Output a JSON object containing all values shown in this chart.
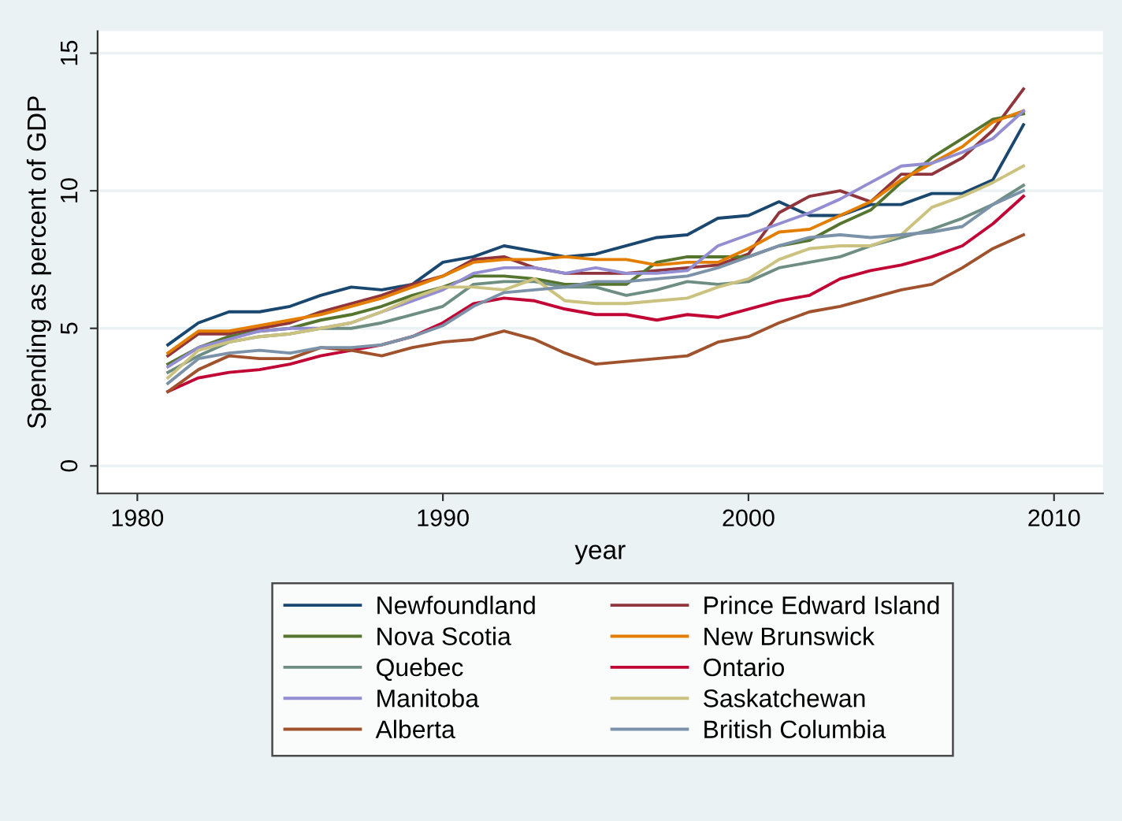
{
  "chart_data": {
    "type": "line",
    "xlabel": "year",
    "ylabel": "Spending as percent of GDP",
    "x": [
      1981,
      1982,
      1983,
      1984,
      1985,
      1986,
      1987,
      1988,
      1989,
      1990,
      1991,
      1992,
      1993,
      1994,
      1995,
      1996,
      1997,
      1998,
      1999,
      2000,
      2001,
      2002,
      2003,
      2004,
      2005,
      2006,
      2007,
      2008,
      2009
    ],
    "series": [
      {
        "name": "Newfoundland",
        "color": "#1a476f",
        "values": [
          4.4,
          5.2,
          5.6,
          5.6,
          5.8,
          6.2,
          6.5,
          6.4,
          6.6,
          7.4,
          7.6,
          8.0,
          7.8,
          7.6,
          7.7,
          8.0,
          8.3,
          8.4,
          9.0,
          9.1,
          9.6,
          9.1,
          9.1,
          9.5,
          9.5,
          9.9,
          9.9,
          10.4,
          12.4
        ]
      },
      {
        "name": "Prince Edward Island",
        "color": "#90353b",
        "values": [
          4.0,
          4.8,
          4.8,
          5.0,
          5.2,
          5.6,
          5.9,
          6.2,
          6.6,
          6.9,
          7.5,
          7.6,
          7.2,
          7.0,
          7.0,
          7.0,
          7.1,
          7.2,
          7.3,
          7.7,
          9.2,
          9.8,
          10.0,
          9.6,
          10.6,
          10.6,
          11.2,
          12.2,
          13.7
        ]
      },
      {
        "name": "Nova Scotia",
        "color": "#55752f",
        "values": [
          3.7,
          4.3,
          4.7,
          4.9,
          5.0,
          5.3,
          5.5,
          5.8,
          6.2,
          6.5,
          6.9,
          6.9,
          6.8,
          6.6,
          6.6,
          6.6,
          7.4,
          7.6,
          7.6,
          7.6,
          8.0,
          8.2,
          8.8,
          9.3,
          10.3,
          11.2,
          11.9,
          12.6,
          12.8
        ]
      },
      {
        "name": "New Brunswick",
        "color": "#e37e00",
        "values": [
          4.1,
          4.9,
          4.9,
          5.1,
          5.3,
          5.5,
          5.8,
          6.1,
          6.5,
          6.9,
          7.4,
          7.5,
          7.5,
          7.6,
          7.5,
          7.5,
          7.3,
          7.4,
          7.4,
          7.9,
          8.5,
          8.6,
          9.1,
          9.6,
          10.4,
          11.0,
          11.6,
          12.5,
          12.9
        ]
      },
      {
        "name": "Quebec",
        "color": "#6e8e84",
        "values": [
          3.4,
          4.0,
          4.5,
          4.7,
          4.8,
          5.0,
          5.0,
          5.2,
          5.5,
          5.8,
          6.6,
          6.7,
          6.7,
          6.5,
          6.5,
          6.2,
          6.4,
          6.7,
          6.6,
          6.7,
          7.2,
          7.4,
          7.6,
          8.0,
          8.3,
          8.6,
          9.0,
          9.5,
          10.2
        ]
      },
      {
        "name": "Ontario",
        "color": "#c10534",
        "values": [
          2.7,
          3.2,
          3.4,
          3.5,
          3.7,
          4.0,
          4.2,
          4.4,
          4.7,
          5.2,
          5.9,
          6.1,
          6.0,
          5.7,
          5.5,
          5.5,
          5.3,
          5.5,
          5.4,
          5.7,
          6.0,
          6.2,
          6.8,
          7.1,
          7.3,
          7.6,
          8.0,
          8.8,
          9.8
        ]
      },
      {
        "name": "Manitoba",
        "color": "#938dd2",
        "values": [
          3.6,
          4.3,
          4.6,
          4.9,
          5.0,
          5.0,
          5.2,
          5.6,
          6.0,
          6.4,
          7.0,
          7.2,
          7.2,
          7.0,
          7.2,
          7.0,
          7.0,
          7.1,
          8.0,
          8.4,
          8.8,
          9.2,
          9.7,
          10.3,
          10.9,
          11.0,
          11.4,
          11.9,
          12.9
        ]
      },
      {
        "name": "Saskatchewan",
        "color": "#cac27e",
        "values": [
          3.2,
          4.2,
          4.5,
          4.7,
          4.8,
          5.0,
          5.2,
          5.6,
          6.1,
          6.5,
          6.5,
          6.4,
          6.8,
          6.0,
          5.9,
          5.9,
          6.0,
          6.1,
          6.5,
          6.8,
          7.5,
          7.9,
          8.0,
          8.0,
          8.4,
          9.4,
          9.8,
          10.3,
          10.9
        ]
      },
      {
        "name": "Alberta",
        "color": "#a0522d",
        "values": [
          2.7,
          3.5,
          4.0,
          3.9,
          3.9,
          4.3,
          4.2,
          4.0,
          4.3,
          4.5,
          4.6,
          4.9,
          4.6,
          4.1,
          3.7,
          3.8,
          3.9,
          4.0,
          4.5,
          4.7,
          5.2,
          5.6,
          5.8,
          6.1,
          6.4,
          6.6,
          7.2,
          7.9,
          8.4
        ]
      },
      {
        "name": "British Columbia",
        "color": "#7b92a8",
        "values": [
          3.0,
          3.9,
          4.1,
          4.2,
          4.1,
          4.3,
          4.3,
          4.4,
          4.7,
          5.1,
          5.8,
          6.3,
          6.4,
          6.5,
          6.7,
          6.7,
          6.8,
          6.9,
          7.2,
          7.6,
          8.0,
          8.3,
          8.4,
          8.3,
          8.4,
          8.5,
          8.7,
          9.5,
          10.0
        ]
      }
    ],
    "xlim": [
      1978.7,
      2011.6
    ],
    "ylim": [
      -1,
      15.8
    ],
    "xticks": [
      1980,
      1990,
      2000,
      2010
    ],
    "yticks": [
      0,
      5,
      10,
      15
    ],
    "grid": "y",
    "legend": "bottom",
    "line_style": "solid",
    "marker": "none"
  }
}
